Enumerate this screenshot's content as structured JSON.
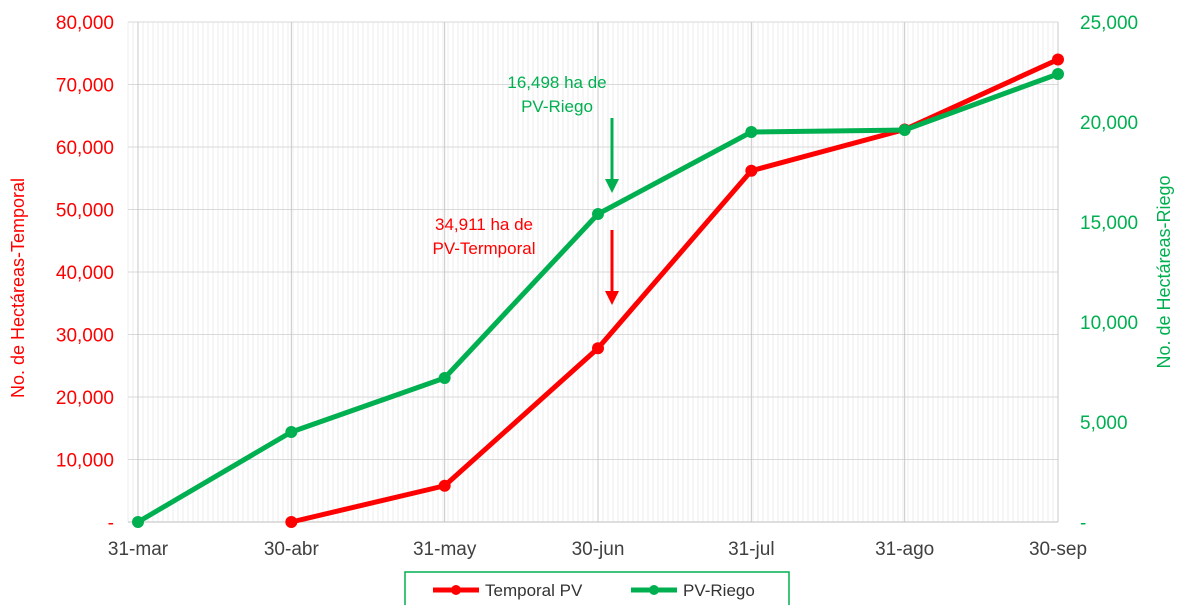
{
  "chart_data": {
    "type": "line",
    "categories": [
      "31-mar",
      "30-abr",
      "31-may",
      "30-jun",
      "31-jul",
      "31-ago",
      "30-sep"
    ],
    "y_left": {
      "label": "No. de Hectáreas-Temporal",
      "ylim": [
        0,
        80000
      ],
      "ticks": [
        "-",
        "10,000",
        "20,000",
        "30,000",
        "40,000",
        "50,000",
        "60,000",
        "70,000",
        "80,000"
      ],
      "color": "#ff0000"
    },
    "y_right": {
      "label": "No. de Hectáreas-Riego",
      "ylim": [
        0,
        25000
      ],
      "ticks": [
        "-",
        "5,000",
        "10,000",
        "15,000",
        "20,000",
        "25,000"
      ],
      "color": "#00b050"
    },
    "series": [
      {
        "name": "Temporal PV",
        "axis": "left",
        "color": "#ff0000",
        "values": [
          null,
          0,
          5800,
          27800,
          56200,
          62800,
          74000
        ]
      },
      {
        "name": "PV-Riego",
        "axis": "right",
        "color": "#00b050",
        "values": [
          0,
          4500,
          7200,
          15400,
          19500,
          19600,
          22400
        ]
      }
    ],
    "annotations": [
      {
        "id": "riego",
        "lines": [
          "16,498 ha de",
          "PV-Riego"
        ],
        "color": "#00b050"
      },
      {
        "id": "temporal",
        "lines": [
          "34,911 ha de",
          "PV-Termporal"
        ],
        "color": "#ff0000"
      }
    ],
    "grid": true,
    "legend_position": "bottom"
  }
}
